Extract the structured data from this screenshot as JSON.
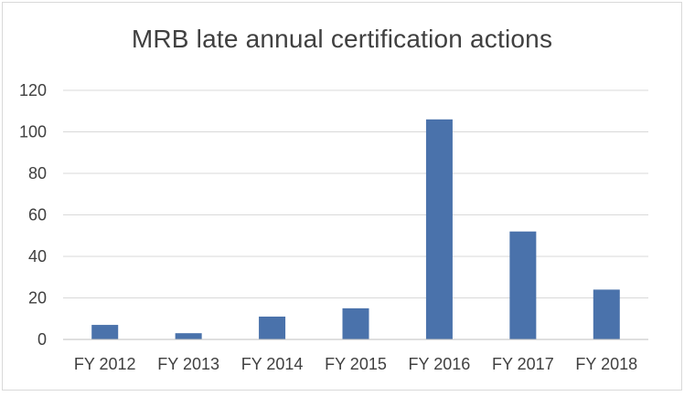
{
  "chart_data": {
    "type": "bar",
    "title": "MRB late annual certification actions",
    "categories": [
      "FY 2012",
      "FY 2013",
      "FY 2014",
      "FY 2015",
      "FY 2016",
      "FY 2017",
      "FY 2018"
    ],
    "values": [
      7,
      3,
      11,
      15,
      106,
      52,
      24
    ],
    "xlabel": "",
    "ylabel": "",
    "ylim": [
      0,
      120
    ],
    "yticks": [
      0,
      20,
      40,
      60,
      80,
      100,
      120
    ],
    "grid": true,
    "legend": "none",
    "bar_color": "#4a72ab"
  }
}
